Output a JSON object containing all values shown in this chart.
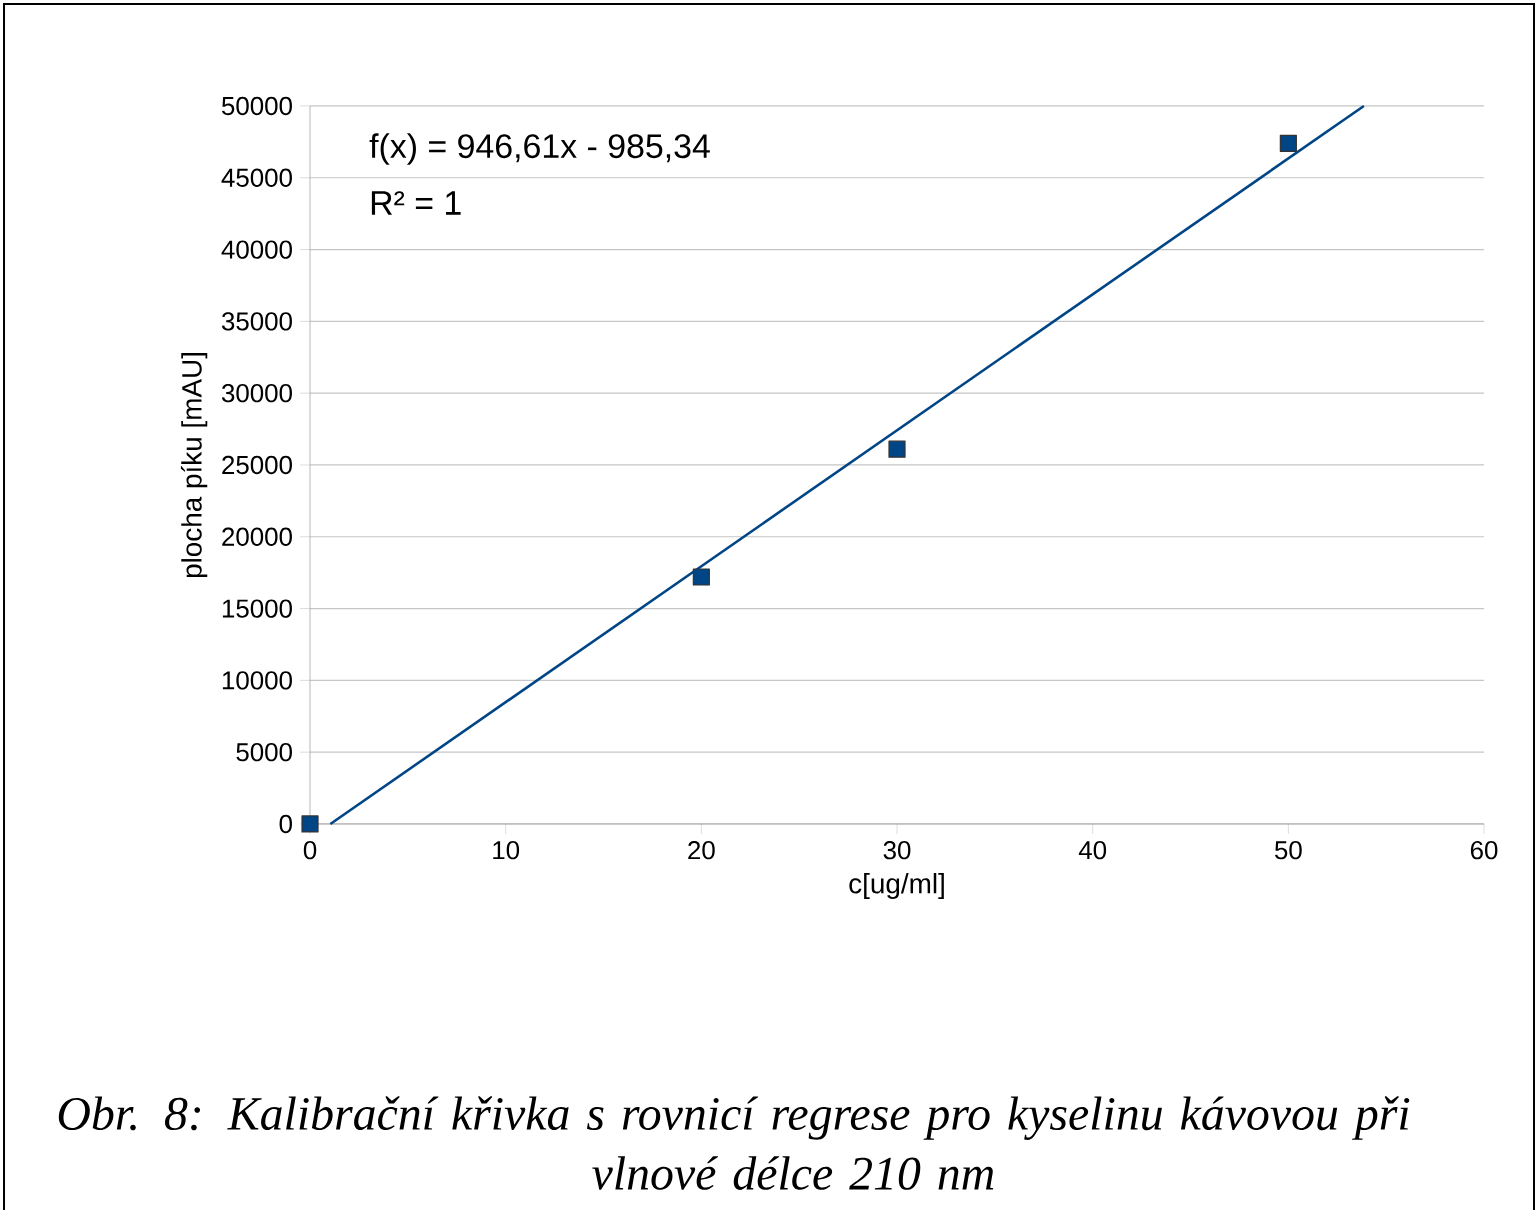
{
  "chart_data": {
    "type": "scatter",
    "xlabel": "c[ug/ml]",
    "ylabel": "plocha píku [mAU]",
    "series": [
      {
        "type": "scatter",
        "color": "#004586",
        "x": [
          0,
          20,
          30,
          50
        ],
        "values": [
          0,
          17200,
          26100,
          47400
        ],
        "marker": "square"
      },
      {
        "type": "line",
        "color": "#004586",
        "x": [
          1.04,
          53.86
        ],
        "values": [
          0,
          50000
        ],
        "marker": "none"
      }
    ],
    "xlim": [
      0,
      60
    ],
    "xticks": [
      0,
      10,
      20,
      30,
      40,
      50,
      60
    ],
    "ylim": [
      0,
      50000
    ],
    "yticks": [
      0,
      5000,
      10000,
      15000,
      20000,
      25000,
      30000,
      35000,
      40000,
      45000,
      50000
    ],
    "grid": "y",
    "annotations": [
      "f(x) = 946,61x - 985,34",
      "R² = 1",
      "Obr. 8: Kalibrační křivka s rovnicí regrese pro kyselinu kávovou při vlnové délce 210 nm"
    ]
  }
}
